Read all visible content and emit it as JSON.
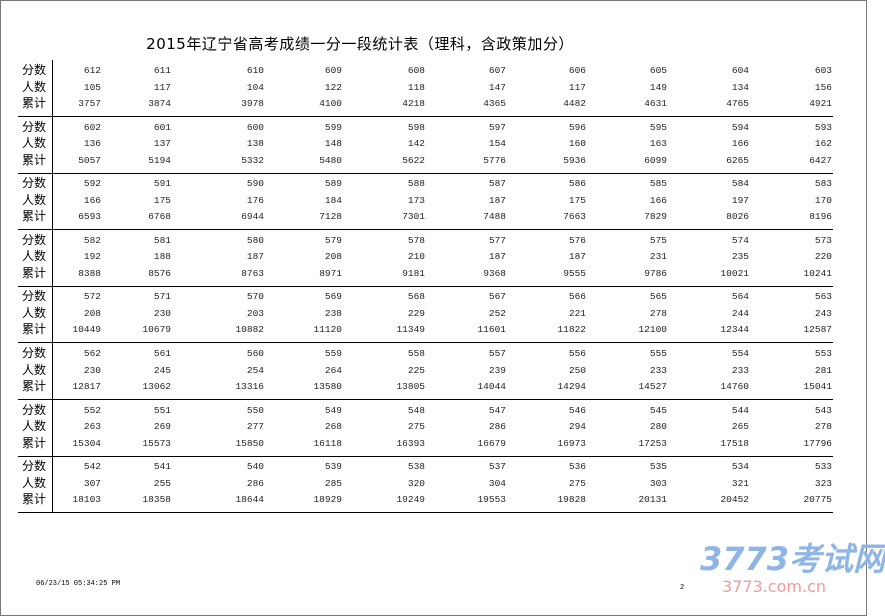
{
  "title": "2015年辽宁省高考成绩一分一段统计表（理科，含政策加分）",
  "row_labels": [
    "分数",
    "人数",
    "累计"
  ],
  "blocks": [
    {
      "scores": [
        "612",
        "611",
        "610",
        "609",
        "608",
        "607",
        "606",
        "605",
        "604",
        "603"
      ],
      "counts": [
        "105",
        "117",
        "104",
        "122",
        "118",
        "147",
        "117",
        "149",
        "134",
        "156"
      ],
      "cumulative": [
        "3757",
        "3874",
        "3978",
        "4100",
        "4218",
        "4365",
        "4482",
        "4631",
        "4765",
        "4921"
      ]
    },
    {
      "scores": [
        "602",
        "601",
        "600",
        "599",
        "598",
        "597",
        "596",
        "595",
        "594",
        "593"
      ],
      "counts": [
        "136",
        "137",
        "138",
        "148",
        "142",
        "154",
        "160",
        "163",
        "166",
        "162"
      ],
      "cumulative": [
        "5057",
        "5194",
        "5332",
        "5480",
        "5622",
        "5776",
        "5936",
        "6099",
        "6265",
        "6427"
      ]
    },
    {
      "scores": [
        "592",
        "591",
        "590",
        "589",
        "588",
        "587",
        "586",
        "585",
        "584",
        "583"
      ],
      "counts": [
        "166",
        "175",
        "176",
        "184",
        "173",
        "187",
        "175",
        "166",
        "197",
        "170"
      ],
      "cumulative": [
        "6593",
        "6768",
        "6944",
        "7128",
        "7301",
        "7488",
        "7663",
        "7829",
        "8026",
        "8196"
      ]
    },
    {
      "scores": [
        "582",
        "581",
        "580",
        "579",
        "578",
        "577",
        "576",
        "575",
        "574",
        "573"
      ],
      "counts": [
        "192",
        "188",
        "187",
        "208",
        "210",
        "187",
        "187",
        "231",
        "235",
        "220"
      ],
      "cumulative": [
        "8388",
        "8576",
        "8763",
        "8971",
        "9181",
        "9368",
        "9555",
        "9786",
        "10021",
        "10241"
      ]
    },
    {
      "scores": [
        "572",
        "571",
        "570",
        "569",
        "568",
        "567",
        "566",
        "565",
        "564",
        "563"
      ],
      "counts": [
        "208",
        "230",
        "203",
        "238",
        "229",
        "252",
        "221",
        "278",
        "244",
        "243"
      ],
      "cumulative": [
        "10449",
        "10679",
        "10882",
        "11120",
        "11349",
        "11601",
        "11822",
        "12100",
        "12344",
        "12587"
      ]
    },
    {
      "scores": [
        "562",
        "561",
        "560",
        "559",
        "558",
        "557",
        "556",
        "555",
        "554",
        "553"
      ],
      "counts": [
        "230",
        "245",
        "254",
        "264",
        "225",
        "239",
        "250",
        "233",
        "233",
        "281"
      ],
      "cumulative": [
        "12817",
        "13062",
        "13316",
        "13580",
        "13805",
        "14044",
        "14294",
        "14527",
        "14760",
        "15041"
      ]
    },
    {
      "scores": [
        "552",
        "551",
        "550",
        "549",
        "548",
        "547",
        "546",
        "545",
        "544",
        "543"
      ],
      "counts": [
        "263",
        "269",
        "277",
        "268",
        "275",
        "286",
        "294",
        "280",
        "265",
        "278"
      ],
      "cumulative": [
        "15304",
        "15573",
        "15850",
        "16118",
        "16393",
        "16679",
        "16973",
        "17253",
        "17518",
        "17796"
      ]
    },
    {
      "scores": [
        "542",
        "541",
        "540",
        "539",
        "538",
        "537",
        "536",
        "535",
        "534",
        "533"
      ],
      "counts": [
        "307",
        "255",
        "286",
        "285",
        "320",
        "304",
        "275",
        "303",
        "321",
        "323"
      ],
      "cumulative": [
        "18103",
        "18358",
        "18644",
        "18929",
        "19249",
        "19553",
        "19828",
        "20131",
        "20452",
        "20775"
      ]
    }
  ],
  "footer": {
    "timestamp": "06/23/15 05:34:25 PM",
    "page_number": "2"
  },
  "watermark": {
    "logo": "3773考试网",
    "url": "3773.com.cn"
  }
}
